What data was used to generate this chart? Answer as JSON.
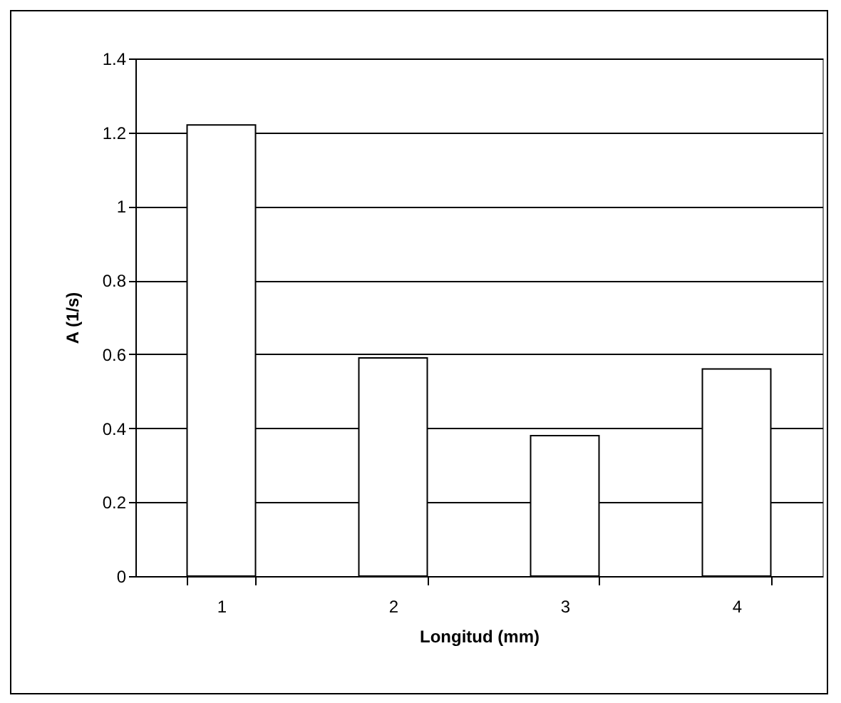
{
  "chart_data": {
    "type": "bar",
    "xlabel": "Longitud (mm)",
    "ylabel": "A (1/s)",
    "categories": [
      "1",
      "2",
      "3",
      "4"
    ],
    "series": [
      {
        "color": "#ffffff",
        "values": [
          1.22,
          0.59,
          0.38,
          0.56
        ]
      }
    ],
    "ylim": [
      0,
      1.4
    ],
    "yticks": [
      0,
      0.2,
      0.4,
      0.6,
      0.8,
      1,
      1.2,
      1.4
    ],
    "grid": "y",
    "legend": false
  }
}
